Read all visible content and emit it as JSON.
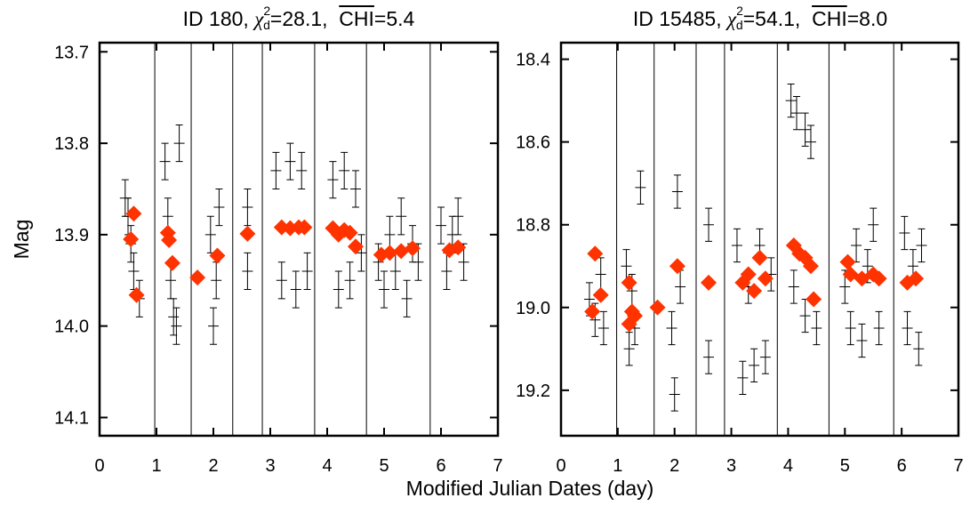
{
  "xlabel": "Modified Julian Dates (day)",
  "chart_data": [
    {
      "type": "scatter",
      "title": {
        "prefix": "ID 180, ",
        "chi": "χ",
        "sup": "2",
        "sub": "d",
        "mid": "=28.1,  ",
        "over": "CHI",
        "suffix": "=5.4"
      },
      "ylabel": "Mag",
      "xlim": [
        0,
        7
      ],
      "xticks": [
        0,
        1,
        2,
        3,
        4,
        5,
        6,
        7
      ],
      "ylim": [
        13.69,
        14.12
      ],
      "y_inverted": true,
      "yticks": [
        13.7,
        13.8,
        13.9,
        {
          "value": 14,
          "label": "14.0"
        },
        14.1
      ],
      "separators": [
        0.97,
        1.61,
        2.34,
        2.86,
        3.78,
        4.69,
        5.81
      ],
      "series": [
        {
          "color": "#000000",
          "marker": "errorbar",
          "x": [
            0.45,
            0.5,
            0.55,
            0.6,
            0.7,
            1.15,
            1.2,
            1.25,
            1.3,
            1.35,
            1.4,
            1.95,
            2.0,
            2.05,
            2.1,
            2.6,
            2.6,
            3.1,
            3.2,
            3.35,
            3.45,
            3.55,
            3.65,
            4.1,
            4.2,
            4.3,
            4.4,
            4.5,
            4.6,
            4.9,
            5.0,
            5.1,
            5.2,
            5.3,
            5.4,
            5.5,
            5.6,
            6.0,
            6.1,
            6.2,
            6.3,
            6.4
          ],
          "values": [
            13.86,
            13.88,
            13.91,
            13.94,
            13.97,
            13.82,
            13.88,
            13.95,
            13.99,
            14.0,
            13.8,
            13.9,
            14.0,
            13.95,
            13.87,
            13.87,
            13.94,
            13.83,
            13.95,
            13.82,
            13.96,
            13.83,
            13.94,
            13.84,
            13.96,
            13.83,
            13.95,
            13.85,
            13.92,
            13.93,
            13.96,
            13.9,
            13.94,
            13.88,
            13.97,
            13.91,
            13.93,
            13.89,
            13.94,
            13.9,
            13.88,
            13.93
          ],
          "errors": [
            0.02,
            0.02,
            0.02,
            0.02,
            0.02,
            0.02,
            0.02,
            0.02,
            0.02,
            0.02,
            0.02,
            0.02,
            0.02,
            0.02,
            0.02,
            0.02,
            0.02,
            0.02,
            0.02,
            0.02,
            0.02,
            0.02,
            0.02,
            0.02,
            0.02,
            0.02,
            0.02,
            0.02,
            0.02,
            0.02,
            0.02,
            0.02,
            0.02,
            0.02,
            0.02,
            0.02,
            0.02,
            0.02,
            0.02,
            0.02,
            0.02,
            0.02
          ]
        },
        {
          "color": "#ff3300",
          "marker": "diamond",
          "x": [
            0.6,
            0.55,
            0.65,
            1.2,
            1.22,
            1.28,
            1.72,
            2.07,
            2.6,
            3.2,
            3.35,
            3.5,
            3.6,
            4.1,
            4.2,
            4.3,
            4.4,
            4.5,
            4.95,
            5.1,
            5.3,
            5.5,
            6.15,
            6.3
          ],
          "values": [
            13.877,
            13.905,
            13.966,
            13.898,
            13.906,
            13.931,
            13.947,
            13.923,
            13.899,
            13.892,
            13.893,
            13.892,
            13.892,
            13.893,
            13.9,
            13.895,
            13.898,
            13.913,
            13.922,
            13.92,
            13.918,
            13.915,
            13.917,
            13.914
          ]
        }
      ]
    },
    {
      "type": "scatter",
      "title": {
        "prefix": "ID 15485, ",
        "chi": "χ",
        "sup": "2",
        "sub": "d",
        "mid": "=54.1,  ",
        "over": "CHI",
        "suffix": "=8.0"
      },
      "xlim": [
        0,
        7
      ],
      "xticks": [
        0,
        1,
        2,
        3,
        4,
        5,
        6,
        7
      ],
      "ylim": [
        18.36,
        19.31
      ],
      "y_inverted": true,
      "yticks": [
        18.4,
        18.6,
        18.8,
        {
          "value": 19,
          "label": "19.0"
        },
        19.2
      ],
      "separators": [
        0.98,
        1.64,
        2.38,
        2.88,
        3.81,
        4.72,
        5.86
      ],
      "series": [
        {
          "color": "#000000",
          "marker": "errorbar",
          "x": [
            0.5,
            0.6,
            0.7,
            0.75,
            1.15,
            1.2,
            1.25,
            1.3,
            1.4,
            1.95,
            2.0,
            2.05,
            2.1,
            2.6,
            2.6,
            3.1,
            3.2,
            3.3,
            3.4,
            3.5,
            3.6,
            3.7,
            4.05,
            4.15,
            4.3,
            4.4,
            4.1,
            4.3,
            4.5,
            5.0,
            5.1,
            5.2,
            5.3,
            5.4,
            5.5,
            5.6,
            6.05,
            6.1,
            6.2,
            6.3,
            6.35
          ],
          "values": [
            18.98,
            19.03,
            18.92,
            19.05,
            18.9,
            19.1,
            18.96,
            19.05,
            18.71,
            19.05,
            19.21,
            18.72,
            18.95,
            18.8,
            19.12,
            18.85,
            19.17,
            18.95,
            19.14,
            18.85,
            19.12,
            18.92,
            18.5,
            18.53,
            18.57,
            18.6,
            18.95,
            19.02,
            19.05,
            18.95,
            19.05,
            18.85,
            19.08,
            18.9,
            18.8,
            19.05,
            18.82,
            19.05,
            18.9,
            19.1,
            18.85
          ],
          "errors": [
            0.04,
            0.04,
            0.04,
            0.04,
            0.04,
            0.04,
            0.04,
            0.04,
            0.04,
            0.04,
            0.04,
            0.04,
            0.04,
            0.04,
            0.04,
            0.04,
            0.04,
            0.04,
            0.04,
            0.04,
            0.04,
            0.04,
            0.04,
            0.04,
            0.04,
            0.04,
            0.04,
            0.04,
            0.04,
            0.04,
            0.04,
            0.04,
            0.04,
            0.04,
            0.04,
            0.04,
            0.04,
            0.04,
            0.04,
            0.04,
            0.04
          ]
        },
        {
          "color": "#ff3300",
          "marker": "diamond",
          "x": [
            0.6,
            0.55,
            0.7,
            1.2,
            1.25,
            1.2,
            1.3,
            1.7,
            2.05,
            2.6,
            3.2,
            3.3,
            3.4,
            3.5,
            3.6,
            4.1,
            4.2,
            4.3,
            4.45,
            4.4,
            5.05,
            5.1,
            5.3,
            5.5,
            5.6,
            6.1,
            6.25
          ],
          "values": [
            18.87,
            19.01,
            18.97,
            18.94,
            19.01,
            19.04,
            19.02,
            19.0,
            18.9,
            18.94,
            18.94,
            18.92,
            18.96,
            18.88,
            18.93,
            18.85,
            18.87,
            18.88,
            18.98,
            18.9,
            18.89,
            18.92,
            18.93,
            18.92,
            18.93,
            18.94,
            18.93
          ]
        }
      ]
    }
  ]
}
